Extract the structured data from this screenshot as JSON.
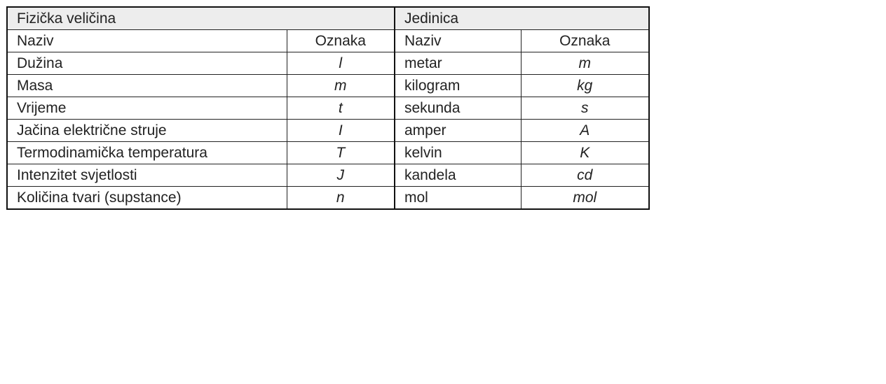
{
  "table": {
    "group_headers": [
      "Fizička veličina",
      "Jedinica"
    ],
    "column_headers": [
      "Naziv",
      "Oznaka",
      "Naziv",
      "Oznaka"
    ],
    "rows": [
      [
        "Dužina",
        "l",
        "metar",
        "m"
      ],
      [
        "Masa",
        "m",
        "kilogram",
        "kg"
      ],
      [
        "Vrijeme",
        "t",
        "sekunda",
        "s"
      ],
      [
        "Jačina električne struje",
        "I",
        "amper",
        "A"
      ],
      [
        "Termodinamička temperatura",
        "T",
        "kelvin",
        "K"
      ],
      [
        "Intenzitet svjetlosti",
        "J",
        "kandela",
        "cd"
      ],
      [
        "Količina tvari (supstance)",
        "n",
        "mol",
        "mol"
      ]
    ],
    "header_bg": "#ededed"
  }
}
